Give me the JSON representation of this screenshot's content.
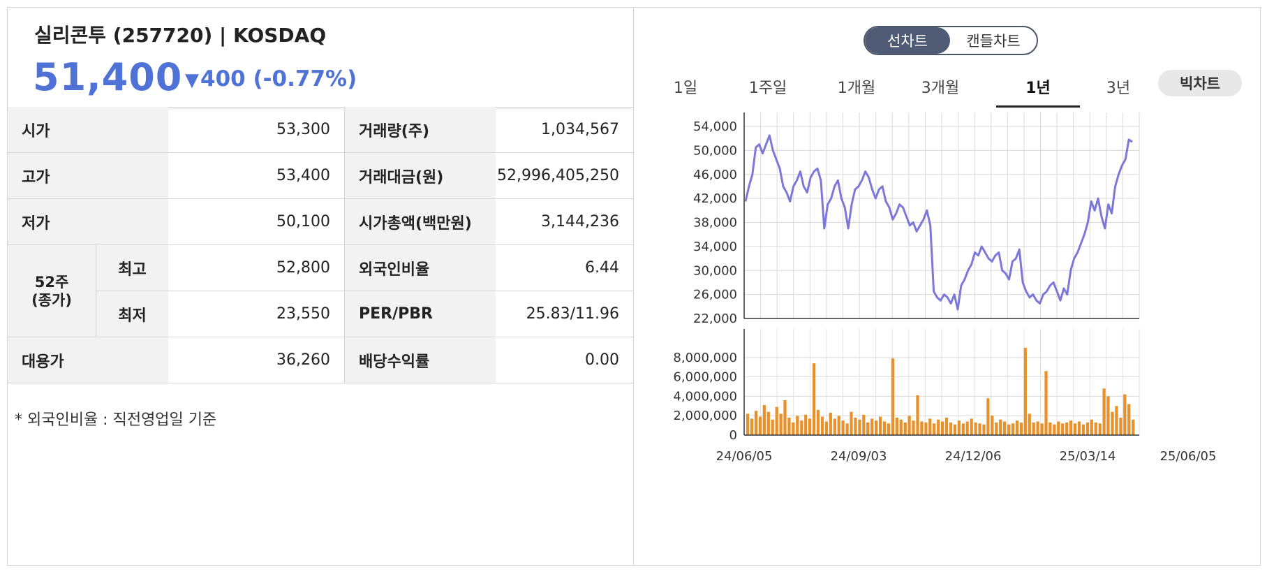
{
  "stock": {
    "title": "실리콘투 (257720) | KOSDAQ",
    "price": "51,400",
    "change_icon": "triangle-down-icon",
    "change": "400 (-0.77%)",
    "accent_color": "#4f72d6"
  },
  "stats": {
    "open_label": "시가",
    "open": "53,300",
    "volume_label": "거래량(주)",
    "volume": "1,034,567",
    "high_label": "고가",
    "high": "53,400",
    "value_label": "거래대금(원)",
    "value": "52,996,405,250",
    "low_label": "저가",
    "low": "50,100",
    "mcap_label": "시가총액(백만원)",
    "mcap": "3,144,236",
    "w52_label": "52주\n(종가)",
    "w52_high_label": "최고",
    "w52_high": "52,800",
    "foreign_label": "외국인비율",
    "foreign": "6.44",
    "w52_low_label": "최저",
    "w52_low": "23,550",
    "perpbr_label": "PER/PBR",
    "perpbr": "25.83/11.96",
    "substitute_label": "대용가",
    "substitute": "36,260",
    "dividend_label": "배당수익률",
    "dividend": "0.00"
  },
  "note": "* 외국인비율 : 직전영업일 기준",
  "chart_toggle": {
    "line": "선차트",
    "candle": "캔들차트",
    "selected": "선차트"
  },
  "period_tabs": [
    "1일",
    "1주일",
    "1개월",
    "3개월",
    "1년",
    "3년"
  ],
  "selected_tab": "1년",
  "big_chart_label": "빅차트",
  "chart_data": [
    {
      "type": "line",
      "series": [
        {
          "color": "#7b78d9",
          "values": [
            41500,
            44000,
            46000,
            50500,
            51000,
            49500,
            51000,
            52500,
            50000,
            48500,
            47000,
            44000,
            43000,
            41500,
            44000,
            45000,
            46500,
            44000,
            43000,
            45500,
            46500,
            47000,
            45000,
            37000,
            41000,
            42000,
            44000,
            45000,
            42000,
            40500,
            37000,
            41000,
            43500,
            44000,
            45000,
            46500,
            45500,
            43500,
            42000,
            43500,
            44000,
            41500,
            40500,
            38500,
            39500,
            41000,
            40500,
            39000,
            37500,
            38000,
            36500,
            37500,
            38500,
            40000,
            37500,
            26500,
            25500,
            25000,
            26000,
            25500,
            24500,
            26000,
            23500,
            27500,
            28500,
            30000,
            31000,
            33000,
            32500,
            34000,
            33000,
            32000,
            31500,
            32500,
            33000,
            30000,
            29500,
            28500,
            31500,
            32000,
            33500,
            28000,
            26500,
            25500,
            26000,
            25000,
            24500,
            26000,
            26500,
            27500,
            28000,
            26500,
            25000,
            27000,
            26000,
            30000,
            32000,
            33000,
            34500,
            36000,
            38000,
            41500,
            40000,
            42000,
            39000,
            37000,
            41000,
            39500,
            44000,
            46000,
            47500,
            48500,
            51800,
            51400
          ],
          "dates": [
            "24/06/05",
            "24/09/03",
            "24/12/06",
            "25/03/14",
            "25/06/05"
          ]
        }
      ],
      "x_tick_labels": [
        "24/06/05",
        "24/09/03",
        "24/12/06",
        "25/03/14",
        "25/06/05"
      ],
      "y_tick_labels": [
        "54,000",
        "50,000",
        "46,000",
        "42,000",
        "38,000",
        "34,000",
        "30,000",
        "26,000",
        "22,000"
      ],
      "ylim": [
        22000,
        54000
      ],
      "grid": true
    },
    {
      "type": "bar",
      "series": [
        {
          "color": "#e8902a",
          "values": [
            2200000,
            1700000,
            2500000,
            1900000,
            3100000,
            2400000,
            1600000,
            2900000,
            2200000,
            3600000,
            1800000,
            1300000,
            2000000,
            1500000,
            2100000,
            1700000,
            7400000,
            2600000,
            1900000,
            1400000,
            2300000,
            1700000,
            2000000,
            1500000,
            1200000,
            2400000,
            1800000,
            1600000,
            2100000,
            1300000,
            1700000,
            1500000,
            1900000,
            1400000,
            1200000,
            7900000,
            1800000,
            1600000,
            1300000,
            2000000,
            1500000,
            4100000,
            1400000,
            1300000,
            1700000,
            1200000,
            1600000,
            1400000,
            1800000,
            1300000,
            1100000,
            1500000,
            1200000,
            1400000,
            1700000,
            1300000,
            1200000,
            1100000,
            3800000,
            2000000,
            1300000,
            1600000,
            1400000,
            1100000,
            1200000,
            1500000,
            1300000,
            9000000,
            2200000,
            1300000,
            1400000,
            1200000,
            6600000,
            1300000,
            1100000,
            1400000,
            1200000,
            1300000,
            1500000,
            1200000,
            1400000,
            1100000,
            1300000,
            1600000,
            1300000,
            1200000,
            4800000,
            4000000,
            2400000,
            3000000,
            1800000,
            4200000,
            3200000,
            1600000
          ],
          "dates": [
            "24/06/05",
            "24/09/03",
            "24/12/06",
            "25/03/14",
            "25/06/05"
          ]
        }
      ],
      "y_tick_labels": [
        "8,000,000",
        "6,000,000",
        "4,000,000",
        "2,000,000",
        "0"
      ],
      "ylim": [
        0,
        9500000
      ],
      "grid": true
    }
  ]
}
